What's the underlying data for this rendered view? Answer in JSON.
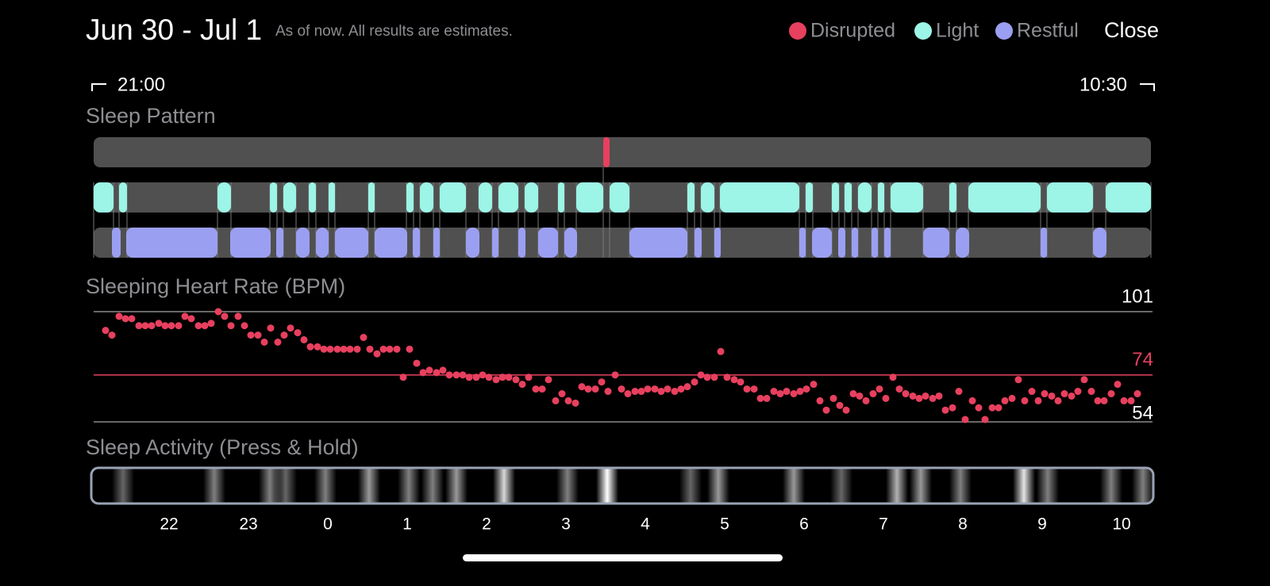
{
  "header": {
    "title": "Jun 30 - Jul 1",
    "subtitle": "As of now. All results are estimates.",
    "close": "Close"
  },
  "legend": [
    {
      "name": "Disrupted",
      "color": "#e8405f"
    },
    {
      "name": "Light",
      "color": "#9cf5e6"
    },
    {
      "name": "Restful",
      "color": "#9b9ff2"
    }
  ],
  "range": {
    "start": "21:00",
    "end": "10:30"
  },
  "xlim": [
    21,
    34.5
  ],
  "xticks": [
    22,
    23,
    {
      "value": 24,
      "label": "0"
    },
    {
      "value": 25,
      "label": "1"
    },
    {
      "value": 26,
      "label": "2"
    },
    {
      "value": 27,
      "label": "3"
    },
    {
      "value": 28,
      "label": "4"
    },
    {
      "value": 29,
      "label": "5"
    },
    {
      "value": 30,
      "label": "6"
    },
    {
      "value": 31,
      "label": "7"
    },
    {
      "value": 32,
      "label": "8"
    },
    {
      "value": 33,
      "label": "9"
    },
    {
      "value": 34,
      "label": "10"
    }
  ],
  "sleep_pattern": {
    "title": "Sleep Pattern",
    "disrupted": [
      [
        27.47,
        27.55
      ]
    ],
    "light": [
      [
        21.05,
        21.3
      ],
      [
        21.37,
        21.47
      ],
      [
        22.61,
        22.78
      ],
      [
        23.27,
        23.36
      ],
      [
        23.44,
        23.6
      ],
      [
        23.76,
        23.85
      ],
      [
        24.01,
        24.09
      ],
      [
        24.51,
        24.59
      ],
      [
        24.99,
        25.08
      ],
      [
        25.16,
        25.33
      ],
      [
        25.41,
        25.74
      ],
      [
        25.9,
        26.07
      ],
      [
        26.15,
        26.4
      ],
      [
        26.48,
        26.65
      ],
      [
        26.9,
        26.98
      ],
      [
        27.13,
        27.47
      ],
      [
        27.55,
        27.8
      ],
      [
        28.53,
        28.62
      ],
      [
        28.7,
        28.87
      ],
      [
        28.94,
        29.94
      ],
      [
        30.02,
        30.11
      ],
      [
        30.35,
        30.44
      ],
      [
        30.51,
        30.6
      ],
      [
        30.68,
        30.85
      ],
      [
        30.93,
        31.01
      ],
      [
        31.09,
        31.5
      ],
      [
        31.83,
        31.92
      ],
      [
        32.07,
        32.98
      ],
      [
        33.06,
        33.64
      ],
      [
        33.8,
        34.37
      ]
    ],
    "restful": [
      [
        21.28,
        21.39
      ],
      [
        21.46,
        22.61
      ],
      [
        22.77,
        23.28
      ],
      [
        23.35,
        23.44
      ],
      [
        23.6,
        23.77
      ],
      [
        23.85,
        24.01
      ],
      [
        24.09,
        24.51
      ],
      [
        24.59,
        25.0
      ],
      [
        25.07,
        25.16
      ],
      [
        25.33,
        25.41
      ],
      [
        25.74,
        25.91
      ],
      [
        26.07,
        26.15
      ],
      [
        26.4,
        26.49
      ],
      [
        26.65,
        26.9
      ],
      [
        26.98,
        27.14
      ],
      [
        27.8,
        28.53
      ],
      [
        28.62,
        28.71
      ],
      [
        28.87,
        28.95
      ],
      [
        29.94,
        30.02
      ],
      [
        30.1,
        30.35
      ],
      [
        30.43,
        30.52
      ],
      [
        30.6,
        30.68
      ],
      [
        30.85,
        30.93
      ],
      [
        31.01,
        31.09
      ],
      [
        31.5,
        31.83
      ],
      [
        31.91,
        32.08
      ],
      [
        32.98,
        33.06
      ],
      [
        33.64,
        33.81
      ]
    ]
  },
  "heart_rate": {
    "title": "Sleeping Heart Rate (BPM)",
    "ylim": [
      54,
      101
    ],
    "yticks": [
      54,
      101
    ],
    "average": 74,
    "color": "#e8405f",
    "x": [
      21.2,
      21.28,
      21.37,
      21.45,
      21.53,
      21.62,
      21.7,
      21.78,
      21.87,
      21.95,
      22.03,
      22.12,
      22.2,
      22.28,
      22.37,
      22.45,
      22.53,
      22.62,
      22.7,
      22.78,
      22.87,
      22.95,
      23.03,
      23.12,
      23.2,
      23.28,
      23.37,
      23.45,
      23.53,
      23.62,
      23.7,
      23.78,
      23.87,
      23.95,
      24.03,
      24.12,
      24.2,
      24.28,
      24.37,
      24.45,
      24.53,
      24.62,
      24.7,
      24.78,
      24.87,
      24.95,
      25.03,
      25.12,
      25.2,
      25.28,
      25.37,
      25.45,
      25.53,
      25.62,
      25.7,
      25.78,
      25.87,
      25.95,
      26.03,
      26.12,
      26.2,
      26.28,
      26.37,
      26.45,
      26.53,
      26.62,
      26.7,
      26.78,
      26.87,
      26.95,
      27.03,
      27.12,
      27.2,
      27.28,
      27.37,
      27.45,
      27.53,
      27.62,
      27.7,
      27.78,
      27.87,
      27.95,
      28.03,
      28.12,
      28.2,
      28.28,
      28.37,
      28.45,
      28.53,
      28.62,
      28.7,
      28.78,
      28.87,
      28.95,
      29.03,
      29.12,
      29.2,
      29.28,
      29.37,
      29.45,
      29.53,
      29.62,
      29.7,
      29.78,
      29.87,
      29.95,
      30.03,
      30.12,
      30.2,
      30.28,
      30.37,
      30.45,
      30.53,
      30.62,
      30.7,
      30.78,
      30.87,
      30.95,
      31.03,
      31.12,
      31.2,
      31.28,
      31.37,
      31.45,
      31.53,
      31.62,
      31.7,
      31.78,
      31.87,
      31.95,
      32.03,
      32.12,
      32.2,
      32.28,
      32.37,
      32.45,
      32.53,
      32.62,
      32.7,
      32.78,
      32.87,
      32.95,
      33.03,
      33.12,
      33.2,
      33.28,
      33.37,
      33.45,
      33.53,
      33.62,
      33.7,
      33.78,
      33.87,
      33.95,
      34.03,
      34.12,
      34.2
    ],
    "values": [
      93,
      91,
      99,
      98,
      98,
      95,
      95,
      95,
      96,
      95,
      95,
      95,
      99,
      98,
      95,
      95,
      96,
      101,
      99,
      95,
      99,
      95,
      91,
      91,
      88,
      94,
      88,
      91,
      94,
      92,
      89,
      86,
      86,
      85,
      85,
      85,
      85,
      85,
      85,
      90,
      85,
      83,
      85,
      85,
      85,
      73,
      85,
      79,
      75,
      76,
      75,
      76,
      74,
      74,
      74,
      73,
      73,
      74,
      73,
      72,
      73,
      73,
      72,
      70,
      73,
      68,
      68,
      72,
      63,
      66,
      63,
      62,
      69,
      68,
      68,
      71,
      67,
      74,
      68,
      66,
      67,
      67,
      68,
      68,
      67,
      68,
      67,
      68,
      69,
      71,
      74,
      73,
      73,
      84,
      73,
      72,
      71,
      68,
      68,
      64,
      64,
      67,
      66,
      67,
      66,
      67,
      68,
      70,
      63,
      59,
      64,
      61,
      59,
      66,
      65,
      63,
      66,
      68,
      64,
      73,
      68,
      66,
      65,
      64,
      65,
      64,
      65,
      59,
      60,
      67,
      55,
      63,
      60,
      55,
      60,
      60,
      63,
      64,
      72,
      63,
      67,
      63,
      66,
      65,
      63,
      66,
      65,
      67,
      72,
      67,
      63,
      63,
      66,
      70,
      63,
      63,
      66
    ]
  },
  "activity": {
    "title": "Sleep Activity (Press & Hold)",
    "x": [
      21.42,
      22.57,
      23.27,
      23.47,
      23.97,
      24.52,
      25.02,
      25.32,
      25.62,
      26.22,
      27.02,
      27.52,
      28.57,
      28.92,
      29.87,
      30.47,
      31.17,
      31.47,
      31.97,
      32.77,
      33.07,
      33.87,
      34.27
    ],
    "values": [
      0.4,
      0.5,
      0.5,
      0.4,
      0.5,
      0.6,
      0.5,
      0.5,
      0.6,
      0.85,
      0.5,
      1,
      0.4,
      0.6,
      0.6,
      0.4,
      0.7,
      0.6,
      0.5,
      0.9,
      0.5,
      0.5,
      0.5
    ]
  }
}
